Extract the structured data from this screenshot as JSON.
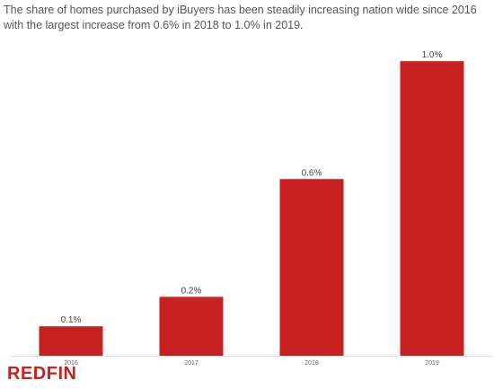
{
  "title": "The share of homes purchased by iBuyers has been steadily increasing nation wide since 2016 with the largest increase from 0.6% in 2018 to 1.0% in 2019.",
  "brand": "REDFIN",
  "colors": {
    "bar": "#c82021",
    "text": "#555555",
    "axis": "#d9d9d9"
  },
  "chart_data": {
    "type": "bar",
    "categories": [
      "2016",
      "2017",
      "2018",
      "2019"
    ],
    "values": [
      0.1,
      0.2,
      0.6,
      1.0
    ],
    "data_labels": [
      "0.1%",
      "0.2%",
      "0.6%",
      "1.0%"
    ],
    "title": "",
    "xlabel": "",
    "ylabel": "",
    "ylim": [
      0,
      1.04
    ],
    "grid": false,
    "legend": "none"
  }
}
